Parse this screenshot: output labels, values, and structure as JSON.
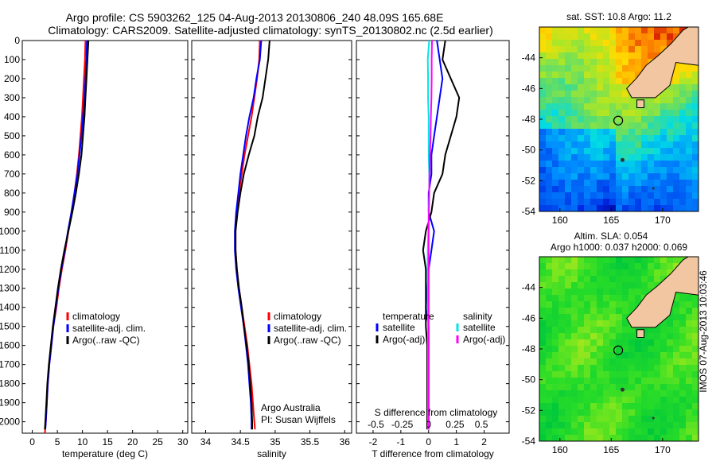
{
  "title": {
    "line1": "Argo profile: CS 5903262_125 04-Aug-2013 20130806_240 48.09S 165.68E",
    "line2": "Climatology: CARS2009. Satellite-adjusted climatology: synTS_20130802.nc (2.5d earlier)"
  },
  "stamp": "IMOS 07-Aug-2013 10:03:46",
  "colors": {
    "climatology": "#ff0000",
    "satellite": "#0000ff",
    "argo": "#000000",
    "sal_satellite": "#00e5e5",
    "sal_argo": "#ff00ff",
    "land": "#f2c6a0"
  },
  "chart_data": [
    {
      "type": "line",
      "panel": "temperature",
      "xlabel": "temperature (deg C)",
      "xlim": [
        -2,
        31
      ],
      "xticks": [
        "0",
        "5",
        "10",
        "15",
        "20",
        "25",
        "30"
      ],
      "xtick_values": [
        0,
        5,
        10,
        15,
        20,
        25,
        30
      ],
      "ylim": [
        2060,
        0
      ],
      "yticks": [
        "0",
        "100",
        "200",
        "300",
        "400",
        "500",
        "600",
        "700",
        "800",
        "900",
        "1000",
        "1100",
        "1200",
        "1300",
        "1400",
        "1500",
        "1600",
        "1700",
        "1800",
        "1900",
        "2000"
      ],
      "ytick_values": [
        0,
        100,
        200,
        300,
        400,
        500,
        600,
        700,
        800,
        900,
        1000,
        1100,
        1200,
        1300,
        1400,
        1500,
        1600,
        1700,
        1800,
        1900,
        2000
      ],
      "legend": [
        "climatology",
        "satellite-adj. clim.",
        "Argo(..raw -QC)"
      ],
      "series": [
        {
          "name": "climatology",
          "color": "#ff0000",
          "x": [
            10.6,
            10.5,
            10.3,
            10.1,
            9.9,
            9.6,
            9.3,
            8.9,
            8.4,
            7.8,
            7.2,
            6.6,
            5.9,
            5.3,
            4.8,
            4.2,
            3.8,
            3.4,
            3.1,
            2.9,
            2.7,
            2.6,
            2.5
          ],
          "y": [
            0,
            100,
            200,
            300,
            400,
            500,
            600,
            700,
            800,
            900,
            1000,
            1100,
            1200,
            1300,
            1400,
            1500,
            1600,
            1700,
            1800,
            1900,
            2000,
            2030,
            2060
          ]
        },
        {
          "name": "satellite-adj. clim.",
          "color": "#0000ff",
          "x": [
            10.9,
            10.8,
            10.6,
            10.4,
            10.1,
            9.8,
            9.4,
            9.0,
            8.4,
            7.8,
            7.1,
            6.5,
            5.8,
            5.2,
            4.7,
            4.2,
            3.8,
            3.4,
            3.1,
            2.9,
            2.7,
            2.6
          ],
          "y": [
            0,
            100,
            200,
            300,
            400,
            500,
            600,
            700,
            800,
            900,
            1000,
            1100,
            1200,
            1300,
            1400,
            1500,
            1600,
            1700,
            1800,
            1900,
            2000,
            2040
          ]
        },
        {
          "name": "Argo(..raw -QC)",
          "color": "#000000",
          "x": [
            11.2,
            11.0,
            10.8,
            10.6,
            10.4,
            10.1,
            9.8,
            9.3,
            8.7,
            8.0,
            7.2,
            6.4,
            5.7,
            5.1,
            4.6,
            4.1,
            3.7,
            3.3,
            3.0,
            2.8,
            2.6,
            2.5
          ],
          "y": [
            0,
            100,
            200,
            300,
            400,
            500,
            600,
            700,
            800,
            900,
            1000,
            1100,
            1200,
            1300,
            1400,
            1500,
            1600,
            1700,
            1800,
            1900,
            2000,
            2040
          ]
        }
      ]
    },
    {
      "type": "line",
      "panel": "salinity",
      "xlabel": "salinity",
      "xlim": [
        33.8,
        36.1
      ],
      "xticks": [
        "34",
        "34.5",
        "35",
        "35.5",
        "36"
      ],
      "xtick_values": [
        34,
        34.5,
        35,
        35.5,
        36
      ],
      "ylim": [
        2060,
        0
      ],
      "legend": [
        "climatology",
        "satellite-adj. clim.",
        "Argo(..raw -QC)"
      ],
      "annotation": [
        "Argo Australia",
        "PI: Susan Wijffels"
      ],
      "series": [
        {
          "name": "climatology",
          "color": "#ff0000",
          "x": [
            34.78,
            34.77,
            34.74,
            34.7,
            34.66,
            34.61,
            34.56,
            34.52,
            34.48,
            34.45,
            34.43,
            34.43,
            34.45,
            34.48,
            34.52,
            34.56,
            34.6,
            34.63,
            34.66,
            34.68,
            34.7,
            34.71
          ],
          "y": [
            0,
            100,
            200,
            300,
            400,
            500,
            600,
            700,
            800,
            900,
            1000,
            1100,
            1200,
            1300,
            1400,
            1500,
            1600,
            1700,
            1800,
            1900,
            2000,
            2040
          ]
        },
        {
          "name": "satellite-adj. clim.",
          "color": "#0000ff",
          "x": [
            34.8,
            34.78,
            34.73,
            34.69,
            34.63,
            34.58,
            34.54,
            34.5,
            34.47,
            34.44,
            34.42,
            34.42,
            34.44,
            34.47,
            34.51,
            34.55,
            34.58,
            34.61,
            34.63,
            34.65,
            34.66,
            34.66
          ],
          "y": [
            0,
            100,
            200,
            300,
            400,
            500,
            600,
            700,
            800,
            900,
            1000,
            1100,
            1200,
            1300,
            1400,
            1500,
            1600,
            1700,
            1800,
            1900,
            2000,
            2040
          ]
        },
        {
          "name": "Argo(..raw -QC)",
          "color": "#000000",
          "x": [
            34.92,
            34.9,
            34.86,
            34.82,
            34.75,
            34.7,
            34.62,
            34.55,
            34.5,
            34.46,
            34.43,
            34.43,
            34.45,
            34.48,
            34.52,
            34.55,
            34.59,
            34.62,
            34.64,
            34.66,
            34.67,
            34.67
          ],
          "y": [
            0,
            100,
            200,
            300,
            400,
            500,
            600,
            700,
            800,
            900,
            1000,
            1100,
            1200,
            1300,
            1400,
            1500,
            1600,
            1700,
            1800,
            1900,
            2000,
            2040
          ]
        }
      ]
    },
    {
      "type": "line",
      "panel": "difference",
      "xlabel": "T difference from climatology",
      "xlabel_top": "S difference from climatology",
      "xlim": [
        -2.6,
        2.9
      ],
      "xticks": [
        "-2",
        "-1",
        "0",
        "1",
        "2"
      ],
      "xtick_values": [
        -2,
        -1,
        0,
        1,
        2
      ],
      "top_ticks": [
        "-0.5",
        "-0.25",
        "0",
        "0.25",
        "0.5"
      ],
      "top_tick_values": [
        -0.5,
        -0.25,
        0,
        0.25,
        0.5
      ],
      "ylim": [
        2060,
        0
      ],
      "legend_left_title": "temperature",
      "legend_right_title": "salinity",
      "legend": [
        "satellite",
        "Argo(-adj)",
        "satellite",
        "Argo(-adj)"
      ],
      "series": [
        {
          "name": "temperature satellite",
          "color": "#0000ff",
          "x": [
            0.3,
            0.4,
            0.5,
            0.4,
            0.3,
            0.2,
            0.1,
            0.1,
            0.0,
            0.0,
            0.2,
            0.1,
            0.0,
            -0.05,
            -0.1,
            0.0,
            0.0,
            0.0,
            0.0,
            0.0,
            0.0
          ],
          "y": [
            0,
            100,
            200,
            300,
            400,
            500,
            600,
            700,
            800,
            900,
            1000,
            1100,
            1200,
            1300,
            1400,
            1500,
            1600,
            1700,
            1800,
            1900,
            2040
          ]
        },
        {
          "name": "temperature Argo(-adj)",
          "color": "#000000",
          "x": [
            0.6,
            0.5,
            0.8,
            1.1,
            1.0,
            0.8,
            0.6,
            0.5,
            0.2,
            0.1,
            -0.1,
            -0.2,
            -0.1,
            -0.1,
            -0.1,
            -0.1,
            -0.05,
            -0.05,
            -0.05,
            -0.05,
            -0.05
          ],
          "y": [
            0,
            100,
            200,
            300,
            400,
            500,
            600,
            700,
            800,
            900,
            1000,
            1100,
            1200,
            1300,
            1400,
            1500,
            1600,
            1700,
            1800,
            1900,
            2040
          ]
        },
        {
          "name": "salinity satellite",
          "color": "#00e5e5",
          "x": [
            0.02,
            -0.03,
            -0.02,
            -0.02,
            0.0,
            0.0,
            0.0,
            0.02,
            0.02,
            0.0,
            -0.01,
            -0.03,
            -0.04,
            -0.03,
            -0.03,
            -0.02,
            -0.02,
            -0.02,
            -0.02,
            -0.02,
            -0.02
          ],
          "y": [
            0,
            100,
            200,
            300,
            400,
            500,
            600,
            700,
            800,
            900,
            1000,
            1100,
            1200,
            1300,
            1400,
            1500,
            1600,
            1700,
            1800,
            1900,
            2040
          ]
        },
        {
          "name": "salinity Argo(-adj)",
          "color": "#ff00ff",
          "x": [
            0.12,
            0.11,
            0.11,
            0.1,
            0.08,
            0.07,
            0.05,
            0.03,
            0.02,
            0.01,
            0.0,
            0.0,
            0.0,
            0.0,
            0.0,
            0.0,
            0.0,
            0.0,
            0.0,
            0.0,
            0.0
          ],
          "y": [
            0,
            100,
            200,
            300,
            400,
            500,
            600,
            700,
            800,
            900,
            1000,
            1100,
            1200,
            1300,
            1400,
            1500,
            1600,
            1700,
            1800,
            1900,
            2040
          ]
        }
      ]
    },
    {
      "type": "heatmap",
      "panel": "sst-map",
      "title": "sat. SST: 10.8 Argo: 11.2",
      "xlim": [
        158,
        173.5
      ],
      "ylim": [
        -54,
        -42
      ],
      "xticks": [
        "160",
        "165",
        "170"
      ],
      "xtick_values": [
        160,
        165,
        170
      ],
      "yticks": [
        "-44",
        "-46",
        "-48",
        "-50",
        "-52",
        "-54"
      ],
      "ytick_values": [
        -44,
        -46,
        -48,
        -50,
        -52,
        -54
      ],
      "marker": {
        "lon": 165.68,
        "lat": -48.09
      }
    },
    {
      "type": "heatmap",
      "panel": "sla-map",
      "title_line1": "Altim. SLA: 0.054",
      "title_line2": "Argo h1000: 0.037 h2000: 0.069",
      "xlim": [
        158,
        173.5
      ],
      "ylim": [
        -54,
        -42
      ],
      "xticks": [
        "160",
        "165",
        "170"
      ],
      "xtick_values": [
        160,
        165,
        170
      ],
      "yticks": [
        "-44",
        "-46",
        "-48",
        "-50",
        "-52",
        "-54"
      ],
      "ytick_values": [
        -44,
        -46,
        -48,
        -50,
        -52,
        -54
      ],
      "marker": {
        "lon": 165.68,
        "lat": -48.09
      }
    }
  ]
}
